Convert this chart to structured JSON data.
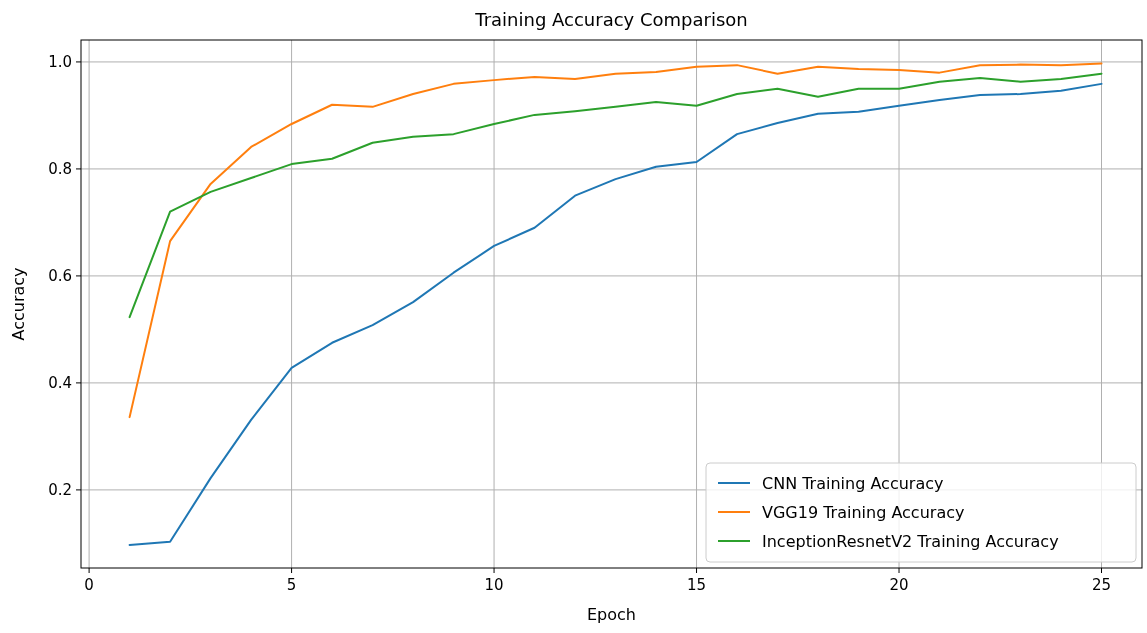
{
  "chart_data": {
    "type": "line",
    "title": "Training Accuracy Comparison",
    "xlabel": "Epoch",
    "ylabel": "Accuracy",
    "x": [
      1,
      2,
      3,
      4,
      5,
      6,
      7,
      8,
      9,
      10,
      11,
      12,
      13,
      14,
      15,
      16,
      17,
      18,
      19,
      20,
      21,
      22,
      23,
      24,
      25
    ],
    "series": [
      {
        "name": "CNN Training Accuracy",
        "color": "#1f77b4",
        "values": [
          0.097,
          0.103,
          0.222,
          0.331,
          0.428,
          0.475,
          0.508,
          0.551,
          0.606,
          0.656,
          0.69,
          0.75,
          0.781,
          0.804,
          0.813,
          0.865,
          0.886,
          0.903,
          0.907,
          0.918,
          0.929,
          0.938,
          0.94,
          0.946,
          0.959
        ]
      },
      {
        "name": "VGG19 Training Accuracy",
        "color": "#ff7f0e",
        "values": [
          0.336,
          0.665,
          0.772,
          0.841,
          0.884,
          0.92,
          0.916,
          0.94,
          0.959,
          0.966,
          0.972,
          0.968,
          0.978,
          0.981,
          0.991,
          0.994,
          0.978,
          0.991,
          0.987,
          0.985,
          0.98,
          0.994,
          0.995,
          0.994,
          0.997
        ]
      },
      {
        "name": "InceptionResnetV2 Training Accuracy",
        "color": "#2ca02c",
        "values": [
          0.523,
          0.72,
          0.757,
          0.783,
          0.809,
          0.819,
          0.849,
          0.86,
          0.865,
          0.884,
          0.901,
          0.908,
          0.916,
          0.925,
          0.918,
          0.94,
          0.95,
          0.935,
          0.95,
          0.95,
          0.963,
          0.97,
          0.963,
          0.968,
          0.978
        ]
      }
    ],
    "xlim": [
      -0.2,
      26.0
    ],
    "xticks": [
      0,
      5,
      10,
      15,
      20,
      25
    ],
    "ylim": [
      0.054,
      1.041
    ],
    "yticks": [
      {
        "value": 0.2,
        "label": "0.2"
      },
      {
        "value": 0.4,
        "label": "0.4"
      },
      {
        "value": 0.6,
        "label": "0.6"
      },
      {
        "value": 0.8,
        "label": "0.8"
      },
      {
        "value": 1.0,
        "label": "1.0"
      }
    ],
    "grid": true,
    "legend": "bottom right",
    "marker": "none",
    "line_style": "solid"
  }
}
